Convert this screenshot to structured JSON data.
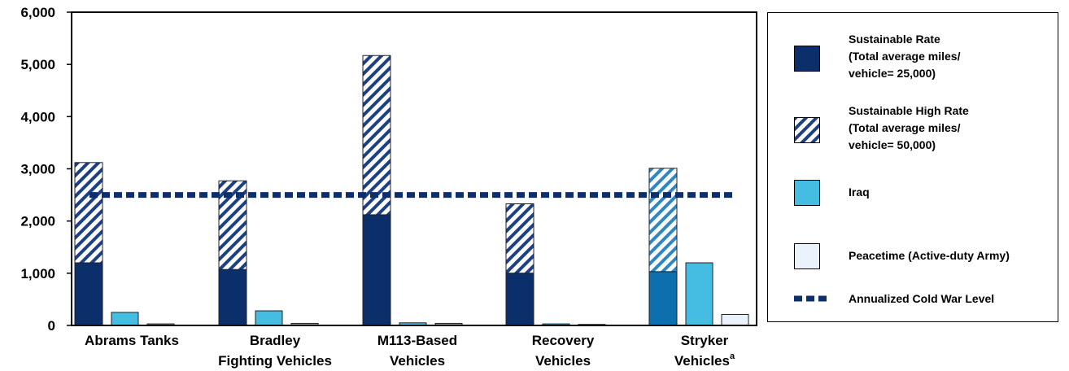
{
  "chart_data": {
    "type": "bar",
    "categories": [
      {
        "lines": [
          "Abrams Tanks"
        ],
        "superscript": ""
      },
      {
        "lines": [
          "Bradley",
          "Fighting Vehicles"
        ],
        "superscript": ""
      },
      {
        "lines": [
          "M113-Based",
          "Vehicles"
        ],
        "superscript": ""
      },
      {
        "lines": [
          "Recovery",
          "Vehicles"
        ],
        "superscript": ""
      },
      {
        "lines": [
          "Stryker",
          "Vehicles"
        ],
        "superscript": "a"
      }
    ],
    "series": [
      {
        "name": "Sustainable Rate (Total average miles/ vehicle= 25,000)",
        "values": [
          1200,
          1070,
          2120,
          1000,
          1030
        ],
        "stacked_base": true
      },
      {
        "name": "Sustainable High Rate (Total average miles/ vehicle= 50,000)",
        "values": [
          1920,
          1700,
          3050,
          1330,
          1980
        ],
        "stacked_on": "Sustainable Rate"
      },
      {
        "name": "Iraq",
        "values": [
          250,
          280,
          50,
          30,
          1200
        ]
      },
      {
        "name": "Peacetime (Active-duty Army)",
        "values": [
          30,
          40,
          40,
          20,
          210
        ]
      }
    ],
    "reference_line": {
      "name": "Annualized Cold War Level",
      "value": 2500
    },
    "y_ticks": [
      "0",
      "1,000",
      "2,000",
      "3,000",
      "4,000",
      "5,000",
      "6,000"
    ],
    "ylim": [
      0,
      6000
    ],
    "title": "",
    "xlabel": "",
    "ylabel": "",
    "legend_position": "right",
    "grid": false
  },
  "legend": [
    {
      "text": "Sustainable Rate\n(Total average miles/\nvehicle= 25,000)",
      "style": "solid-navy"
    },
    {
      "text": "Sustainable High Rate\n(Total average miles/\nvehicle= 50,000)",
      "style": "hatched"
    },
    {
      "text": "Iraq",
      "style": "solid-cyan"
    },
    {
      "text": "Peacetime (Active-duty Army)",
      "style": "pale"
    },
    {
      "text": "Annualized Cold War Level",
      "style": "dashed-line"
    }
  ],
  "colors": {
    "navy": "#0b2f6b",
    "stryker_base": "#0e6fae",
    "cyan": "#45bde3",
    "peacetime": "#eaf3fb",
    "gray_small": "#9a9a9a",
    "hatch_abrams": "#1d3f86",
    "hatch_stryker": "#2e86c4",
    "reference_line": "#0b2f6b"
  }
}
